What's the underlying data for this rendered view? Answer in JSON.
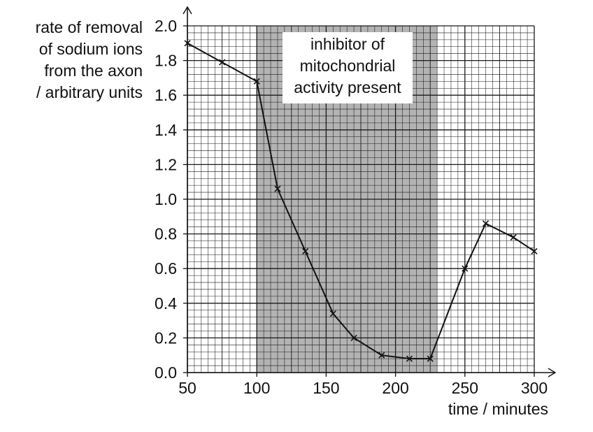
{
  "chart_data": {
    "type": "line",
    "title": "",
    "xlabel": "time / minutes",
    "ylabel_lines": [
      "rate of removal",
      "of sodium ions",
      "from the axon",
      "/ arbitrary units"
    ],
    "xlim": [
      50,
      300
    ],
    "ylim": [
      0,
      2.0
    ],
    "x_ticks": [
      50,
      100,
      150,
      200,
      250,
      300
    ],
    "y_ticks": [
      "0.0",
      "0.2",
      "0.4",
      "0.6",
      "0.8",
      "1.0",
      "1.2",
      "1.4",
      "1.6",
      "1.8",
      "2.0"
    ],
    "grid": true,
    "marker": "x",
    "shaded_region": {
      "x_start": 100,
      "x_end": 230,
      "label_lines": [
        "inhibitor of",
        "mitochondrial",
        "activity present"
      ]
    },
    "series": [
      {
        "x": [
          50,
          75,
          100,
          115,
          135,
          155,
          170,
          190,
          210,
          225,
          250,
          265,
          285,
          300
        ],
        "y": [
          1.9,
          1.79,
          1.68,
          1.06,
          0.7,
          0.34,
          0.2,
          0.1,
          0.08,
          0.08,
          0.6,
          0.86,
          0.78,
          0.7
        ]
      }
    ],
    "colors": {
      "shade": "#b3b3b3",
      "grid": "#1a1a1a",
      "line": "#111111"
    }
  }
}
